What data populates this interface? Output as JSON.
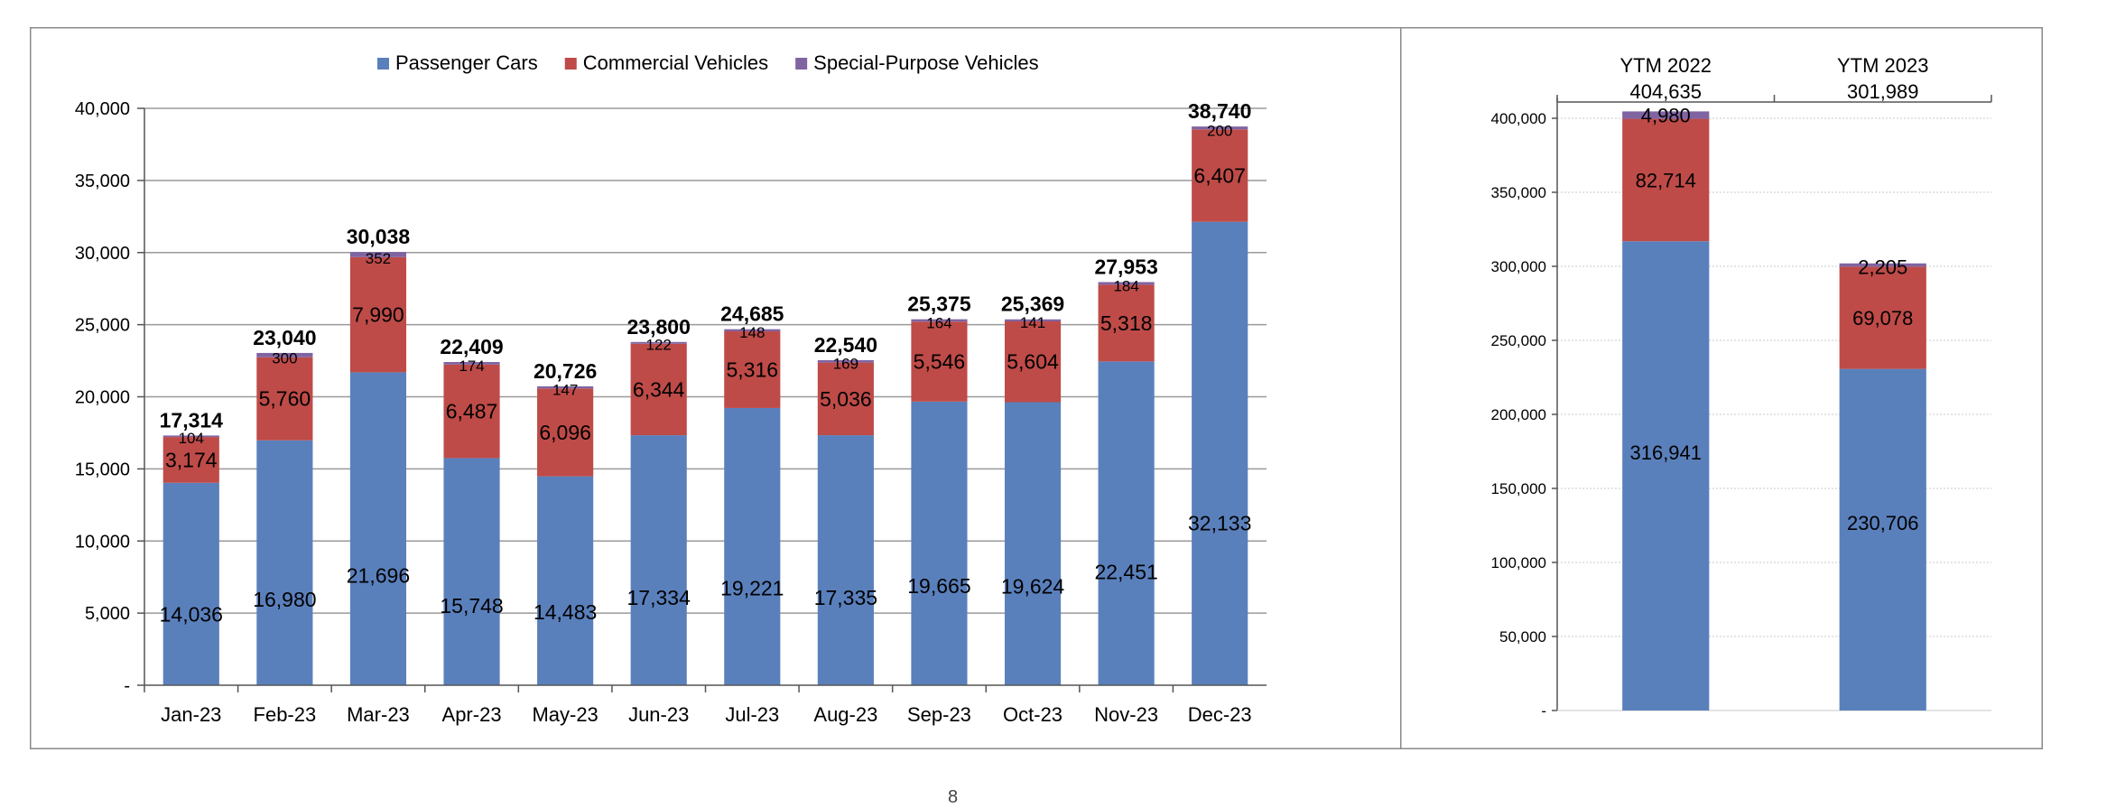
{
  "colors": {
    "passenger": "#5A80BC",
    "commercial": "#BE4B48",
    "special": "#8064A2",
    "grid": "#9a9a9a",
    "frame": "#8a8a8a",
    "text": "#000000"
  },
  "footer": {
    "page_mark": "8"
  },
  "chart_data": [
    {
      "type": "bar",
      "stacked": true,
      "title": "",
      "legend": [
        "Passenger Cars",
        "Commercial Vehicles",
        "Special-Purpose Vehicles"
      ],
      "legend_position": "top-center",
      "categories": [
        "Jan-23",
        "Feb-23",
        "Mar-23",
        "Apr-23",
        "May-23",
        "Jun-23",
        "Jul-23",
        "Aug-23",
        "Sep-23",
        "Oct-23",
        "Nov-23",
        "Dec-23"
      ],
      "series": [
        {
          "name": "Passenger Cars",
          "values": [
            14036,
            16980,
            21696,
            15748,
            14483,
            17334,
            19221,
            17335,
            19665,
            19624,
            22451,
            32133
          ],
          "labels": [
            "14,036",
            "16,980",
            "21,696",
            "15,748",
            "14,483",
            "17,334",
            "19,221",
            "17,335",
            "19,665",
            "19,624",
            "22,451",
            "32,133"
          ]
        },
        {
          "name": "Commercial Vehicles",
          "values": [
            3174,
            5760,
            7990,
            6487,
            6096,
            6344,
            5316,
            5036,
            5546,
            5604,
            5318,
            6407
          ],
          "labels": [
            "3,174",
            "5,760",
            "7,990",
            "6,487",
            "6,096",
            "6,344",
            "5,316",
            "5,036",
            "5,546",
            "5,604",
            "5,318",
            "6,407"
          ]
        },
        {
          "name": "Special-Purpose Vehicles",
          "values": [
            104,
            300,
            352,
            174,
            147,
            122,
            148,
            169,
            164,
            141,
            184,
            200
          ],
          "labels": [
            "104",
            "300",
            "352",
            "174",
            "147",
            "122",
            "148",
            "169",
            "164",
            "141",
            "184",
            "200"
          ]
        }
      ],
      "totals": [
        "17,314",
        "23,040",
        "30,038",
        "22,409",
        "20,726",
        "23,800",
        "24,685",
        "22,540",
        "25,375",
        "25,369",
        "27,953",
        "38,740"
      ],
      "ylim": [
        0,
        40000
      ],
      "yticks": [
        0,
        5000,
        10000,
        15000,
        20000,
        25000,
        30000,
        35000,
        40000
      ],
      "ytick_labels": [
        "-",
        "5,000",
        "10,000",
        "15,000",
        "20,000",
        "25,000",
        "30,000",
        "35,000",
        "40,000"
      ],
      "grid": true,
      "xlabel": "",
      "ylabel": ""
    },
    {
      "type": "bar",
      "stacked": true,
      "title": "",
      "categories": [
        "YTM 2022",
        "YTM 2023"
      ],
      "series": [
        {
          "name": "Passenger Cars",
          "values": [
            316941,
            230706
          ],
          "labels": [
            "316,941",
            "230,706"
          ]
        },
        {
          "name": "Commercial Vehicles",
          "values": [
            82714,
            69078
          ],
          "labels": [
            "82,714",
            "69,078"
          ]
        },
        {
          "name": "Special-Purpose Vehicles",
          "values": [
            4980,
            2205
          ],
          "labels": [
            "4,980",
            "2,205"
          ]
        }
      ],
      "totals": [
        "404,635",
        "301,989"
      ],
      "ylim": [
        0,
        400000
      ],
      "yticks": [
        0,
        50000,
        100000,
        150000,
        200000,
        250000,
        300000,
        350000,
        400000
      ],
      "ytick_labels": [
        "-",
        "50,000",
        "100,000",
        "150,000",
        "200,000",
        "250,000",
        "300,000",
        "350,000",
        "400,000"
      ],
      "grid": true,
      "xlabel": "",
      "ylabel": ""
    }
  ]
}
